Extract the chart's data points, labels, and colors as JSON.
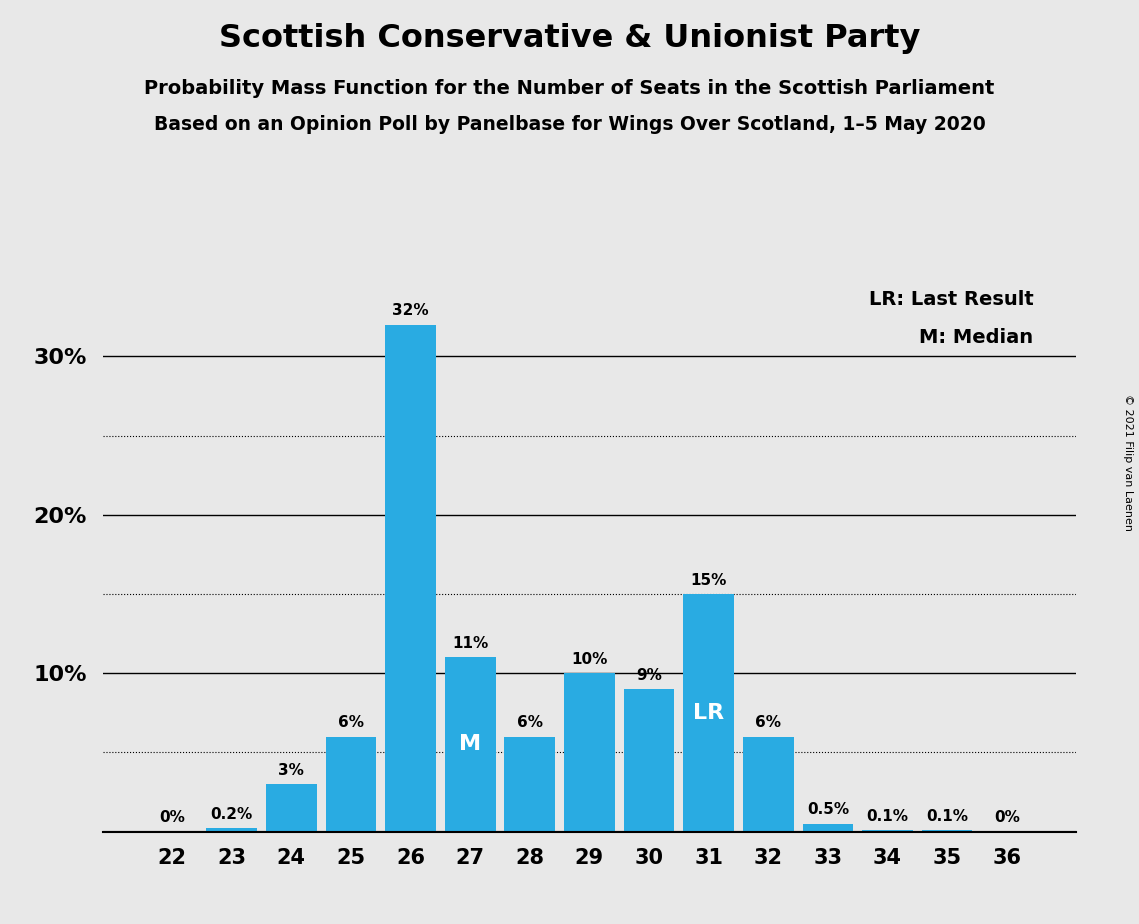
{
  "title": "Scottish Conservative & Unionist Party",
  "subtitle1": "Probability Mass Function for the Number of Seats in the Scottish Parliament",
  "subtitle2": "Based on an Opinion Poll by Panelbase for Wings Over Scotland, 1–5 May 2020",
  "copyright": "© 2021 Filip van Laenen",
  "categories": [
    22,
    23,
    24,
    25,
    26,
    27,
    28,
    29,
    30,
    31,
    32,
    33,
    34,
    35,
    36
  ],
  "values": [
    0.0,
    0.2,
    3.0,
    6.0,
    32.0,
    11.0,
    6.0,
    10.0,
    9.0,
    15.0,
    6.0,
    0.5,
    0.1,
    0.1,
    0.0
  ],
  "labels": [
    "0%",
    "0.2%",
    "3%",
    "6%",
    "32%",
    "11%",
    "6%",
    "10%",
    "9%",
    "15%",
    "6%",
    "0.5%",
    "0.1%",
    "0.1%",
    "0%"
  ],
  "bar_color": "#29ABE2",
  "median_seat": 27,
  "last_result_seat": 31,
  "background_color": "#E8E8E8",
  "ylim": [
    0,
    35
  ],
  "solid_yticks": [
    0,
    10,
    20,
    30
  ],
  "dotted_yticks": [
    5,
    15,
    25
  ],
  "labeled_yticks": [
    10,
    20,
    30
  ],
  "labeled_ytick_labels": [
    "10%",
    "20%",
    "30%"
  ],
  "legend_lr": "LR: Last Result",
  "legend_m": "M: Median"
}
